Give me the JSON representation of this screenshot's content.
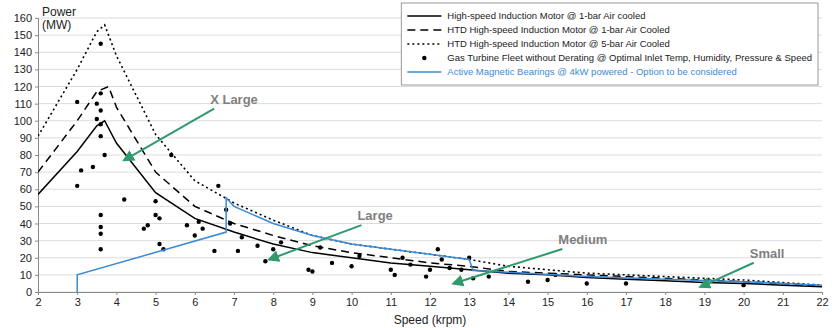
{
  "chart_data": {
    "type": "line",
    "x_label": "Speed (krpm)",
    "y_label": "Power (MW)",
    "xlim": [
      2,
      22
    ],
    "xticks": [
      2,
      3,
      4,
      5,
      6,
      7,
      8,
      9,
      10,
      11,
      12,
      13,
      14,
      15,
      16,
      17,
      18,
      19,
      20,
      21,
      22
    ],
    "ylim": [
      0,
      160
    ],
    "yticks": [
      0,
      10,
      20,
      30,
      40,
      50,
      60,
      70,
      80,
      90,
      100,
      110,
      120,
      130,
      140,
      150,
      160
    ],
    "grid": true,
    "legend": "upper right",
    "series": [
      {
        "name": "High-speed Induction Motor @ 1-bar Air cooled",
        "type": "line",
        "color": "#000000",
        "line_style": "solid",
        "x": [
          2,
          3,
          3.5,
          3.7,
          4,
          5,
          6,
          7,
          8,
          9,
          10,
          11,
          12,
          13,
          14,
          15,
          16,
          17,
          18,
          19,
          20,
          21,
          22
        ],
        "values": [
          57,
          82,
          97,
          100,
          87,
          58,
          43,
          35,
          28,
          23,
          20,
          17,
          15,
          13,
          11,
          10,
          8.5,
          7.5,
          6.5,
          5.5,
          5,
          4,
          3
        ]
      },
      {
        "name": "HTD High-speed Induction Motor @ 1-bar Air Cooled",
        "type": "line",
        "color": "#000000",
        "line_style": "dashed",
        "x": [
          2,
          3,
          3.5,
          3.8,
          4,
          5,
          6,
          7,
          8,
          9,
          10,
          11,
          12,
          13,
          14,
          15,
          16,
          17,
          18,
          19,
          20,
          21,
          22
        ],
        "values": [
          70,
          100,
          117,
          120,
          108,
          70,
          50,
          40,
          33,
          27,
          23,
          20,
          17,
          15,
          12,
          11,
          10,
          9,
          8,
          7,
          6,
          5,
          3.5
        ]
      },
      {
        "name": "HTD High-speed Induction Motor @ 5-bar Air Cooled",
        "type": "line",
        "color": "#000000",
        "line_style": "dotted",
        "x": [
          2,
          3,
          3.5,
          3.7,
          4,
          5,
          6,
          7,
          8,
          9,
          10,
          11,
          12,
          13,
          14,
          15,
          16,
          17,
          18,
          19,
          20,
          21,
          22
        ],
        "values": [
          91,
          130,
          152,
          156,
          138,
          92,
          65,
          52,
          42,
          33,
          28,
          25,
          22,
          19,
          15,
          13,
          11,
          10,
          9,
          8,
          7,
          5.5,
          4
        ]
      },
      {
        "name": "Gas Turbine Fleet without Derating @ Optimal Inlet Temp, Humidity, Pressure & Speed",
        "type": "scatter",
        "color": "#000000",
        "marker": "circle",
        "x": [
          3.0,
          3.0,
          3.1,
          3.4,
          3.5,
          3.5,
          3.6,
          3.6,
          3.6,
          3.6,
          3.6,
          3.7,
          3.6,
          3.6,
          3.6,
          3.6,
          4.2,
          4.7,
          4.8,
          5.0,
          5.0,
          5.1,
          5.1,
          5.2,
          5.4,
          5.8,
          6.0,
          6.1,
          6.2,
          6.5,
          6.6,
          6.8,
          6.9,
          7.1,
          7.2,
          7.6,
          7.8,
          8.0,
          8.2,
          8.9,
          9.0,
          9.2,
          9.5,
          10.0,
          10.2,
          11.0,
          11.1,
          11.3,
          11.5,
          11.9,
          12.0,
          12.2,
          12.3,
          12.5,
          12.8,
          13.0,
          13.1,
          13.5,
          14.5,
          15.0,
          15.2,
          16.0,
          17.0,
          19.0,
          20.0
        ],
        "values": [
          111,
          62,
          71,
          73,
          110,
          101,
          145,
          116,
          106,
          98,
          91,
          80,
          45,
          38,
          34,
          25,
          54,
          37,
          39,
          53,
          45,
          43,
          28,
          25,
          80,
          39,
          33,
          41,
          37,
          24,
          62,
          48,
          40,
          24,
          32,
          27,
          18,
          25,
          29,
          13,
          12,
          26,
          17,
          15,
          21,
          13,
          10,
          20,
          16,
          9,
          13,
          25,
          19,
          14,
          13,
          20,
          8,
          9,
          6,
          7,
          10,
          5,
          5,
          4,
          4
        ]
      },
      {
        "name": "Active Magnetic Bearings @ 4kW powered - Option to be considered",
        "type": "line",
        "color": "#3a8ad6",
        "line_style": "solid",
        "x": [
          3,
          3,
          6.8,
          6.8,
          7,
          8,
          9,
          10,
          11,
          12,
          13,
          13.1,
          14,
          16,
          18,
          20,
          22
        ],
        "values": [
          0,
          10,
          35,
          55,
          50,
          40,
          33,
          28,
          25,
          22,
          19,
          12.5,
          11.5,
          9,
          7.5,
          6,
          4
        ]
      }
    ],
    "annotations": [
      {
        "text": "X Large",
        "x": 7.0,
        "y": 112,
        "arrow_x": 4.2,
        "arrow_y": 77
      },
      {
        "text": "Large",
        "x": 10.6,
        "y": 44,
        "arrow_x": 7.9,
        "arrow_y": 19
      },
      {
        "text": "Medium",
        "x": 15.9,
        "y": 30,
        "arrow_x": 12.6,
        "arrow_y": 5
      },
      {
        "text": "Small",
        "x": 20.6,
        "y": 22,
        "arrow_x": 18.9,
        "arrow_y": 3
      }
    ]
  }
}
